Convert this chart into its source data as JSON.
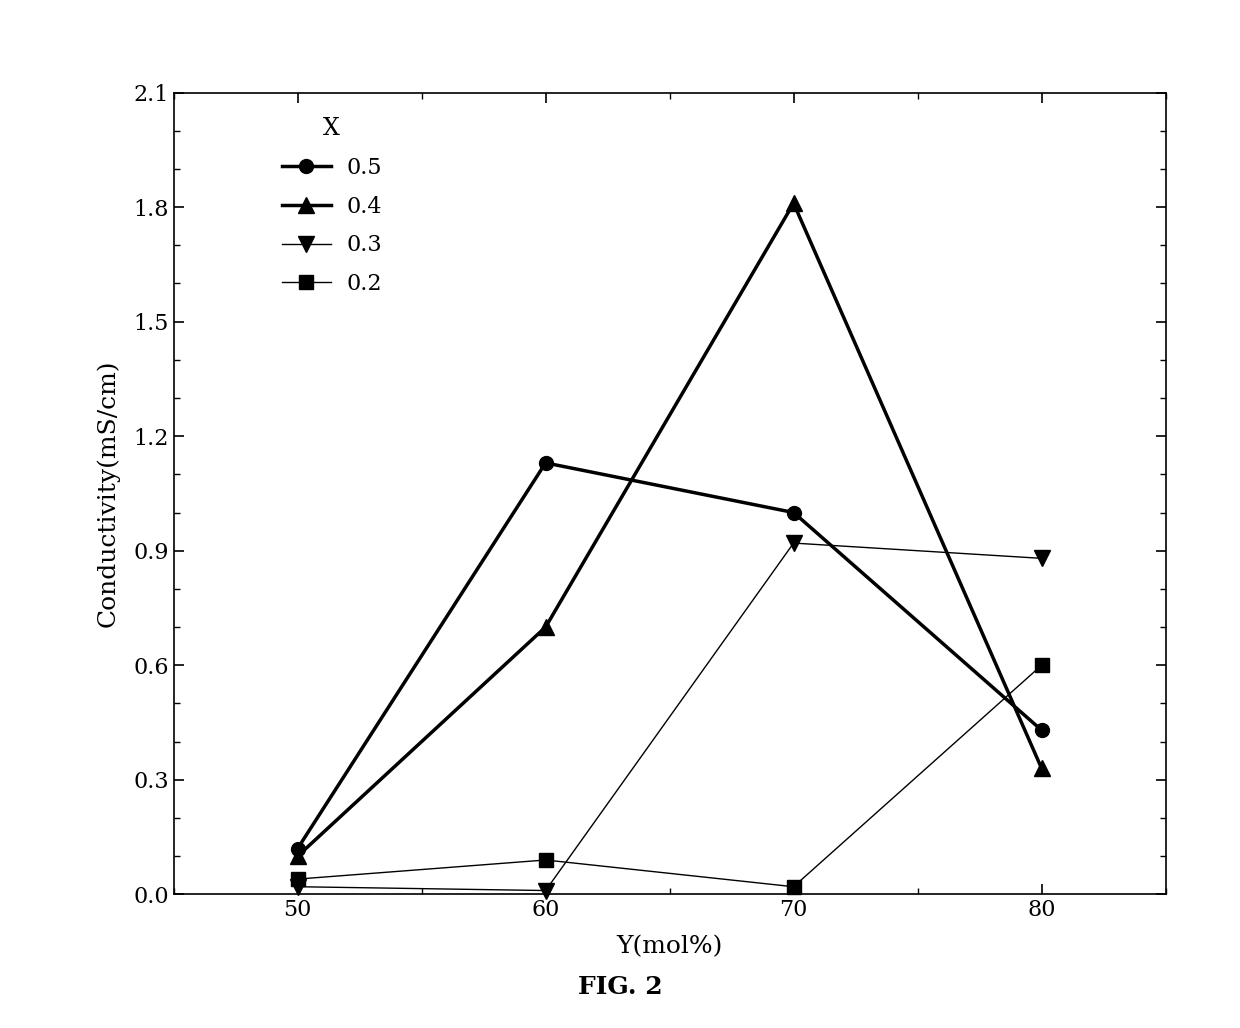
{
  "x_values": [
    50,
    60,
    70,
    80
  ],
  "series": [
    {
      "label": "0.5",
      "marker": "o",
      "linewidth": 2.5,
      "markersize": 10,
      "y_values": [
        0.12,
        1.13,
        1.0,
        0.43
      ]
    },
    {
      "label": "0.4",
      "marker": "^",
      "linewidth": 2.5,
      "markersize": 12,
      "y_values": [
        0.1,
        0.7,
        1.81,
        0.33
      ]
    },
    {
      "label": "0.3",
      "marker": "v",
      "linewidth": 1.0,
      "markersize": 11,
      "y_values": [
        0.02,
        0.01,
        0.92,
        0.88
      ]
    },
    {
      "label": "0.2",
      "marker": "s",
      "linewidth": 1.0,
      "markersize": 10,
      "y_values": [
        0.04,
        0.09,
        0.02,
        0.6
      ]
    }
  ],
  "xlabel": "Y(mol%)",
  "ylabel": "Conductivity(mS/cm)",
  "legend_title": "X",
  "xlim": [
    45,
    85
  ],
  "ylim": [
    0.0,
    2.1
  ],
  "yticks": [
    0.0,
    0.3,
    0.6,
    0.9,
    1.2,
    1.5,
    1.8,
    2.1
  ],
  "xticks": [
    50,
    60,
    70,
    80
  ],
  "fig_label": "FIG. 2",
  "background_color": "#ffffff",
  "line_color": "#000000"
}
